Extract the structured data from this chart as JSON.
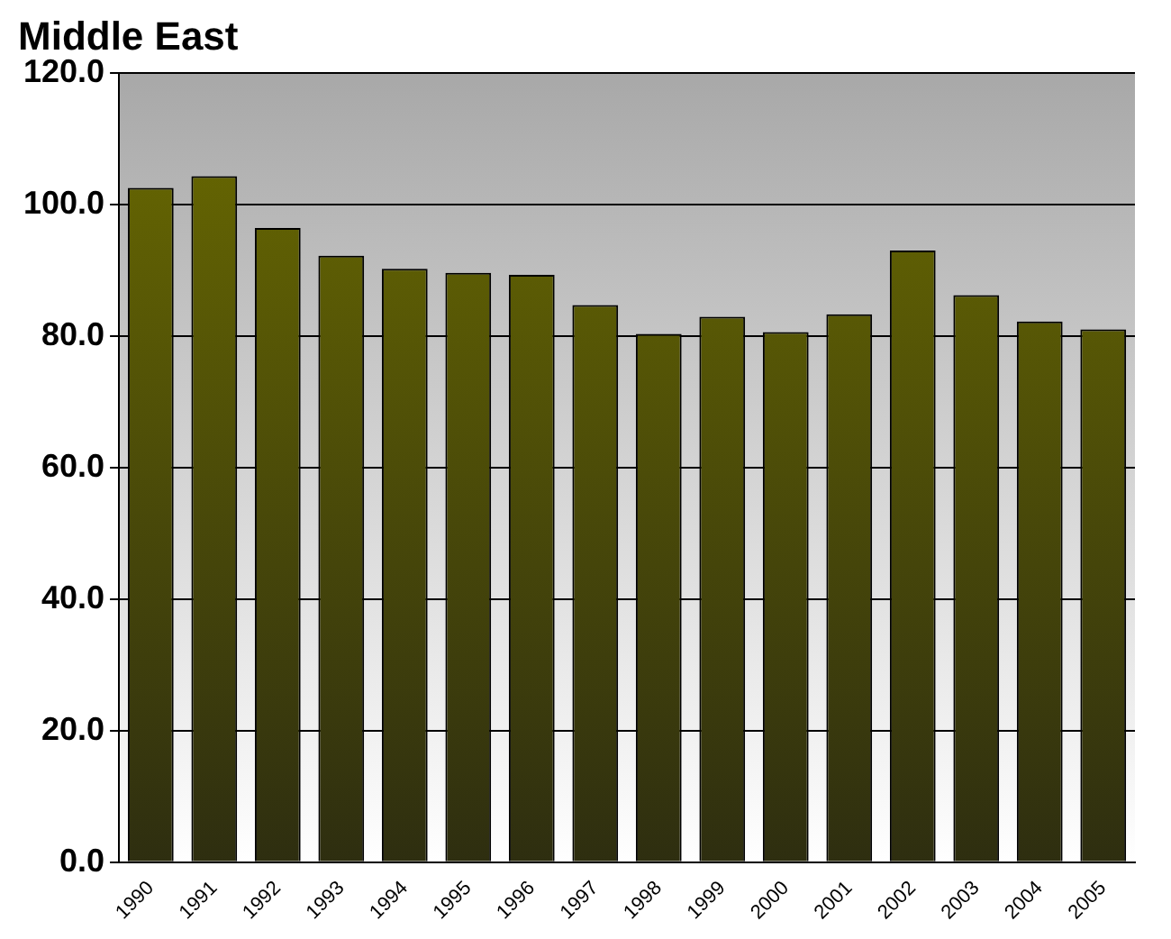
{
  "chart_data": {
    "type": "bar",
    "title": "Middle East",
    "categories": [
      "1990",
      "1991",
      "1992",
      "1993",
      "1994",
      "1995",
      "1996",
      "1997",
      "1998",
      "1999",
      "2000",
      "2001",
      "2002",
      "2003",
      "2004",
      "2005"
    ],
    "values": [
      102.5,
      104.3,
      96.4,
      92.2,
      90.2,
      89.6,
      89.3,
      84.7,
      80.3,
      82.9,
      80.6,
      83.3,
      93.0,
      86.2,
      82.2,
      81.0
    ],
    "color": "#6b6b00",
    "ylim": [
      0,
      120
    ],
    "yticks": [
      {
        "value": 0,
        "label": "0.0"
      },
      {
        "value": 20,
        "label": "20.0"
      },
      {
        "value": 40,
        "label": "40.0"
      },
      {
        "value": 60,
        "label": "60.0"
      },
      {
        "value": 80,
        "label": "80.0"
      },
      {
        "value": 100,
        "label": "100.0"
      },
      {
        "value": 120,
        "label": "120.0"
      }
    ],
    "grid": "y"
  }
}
